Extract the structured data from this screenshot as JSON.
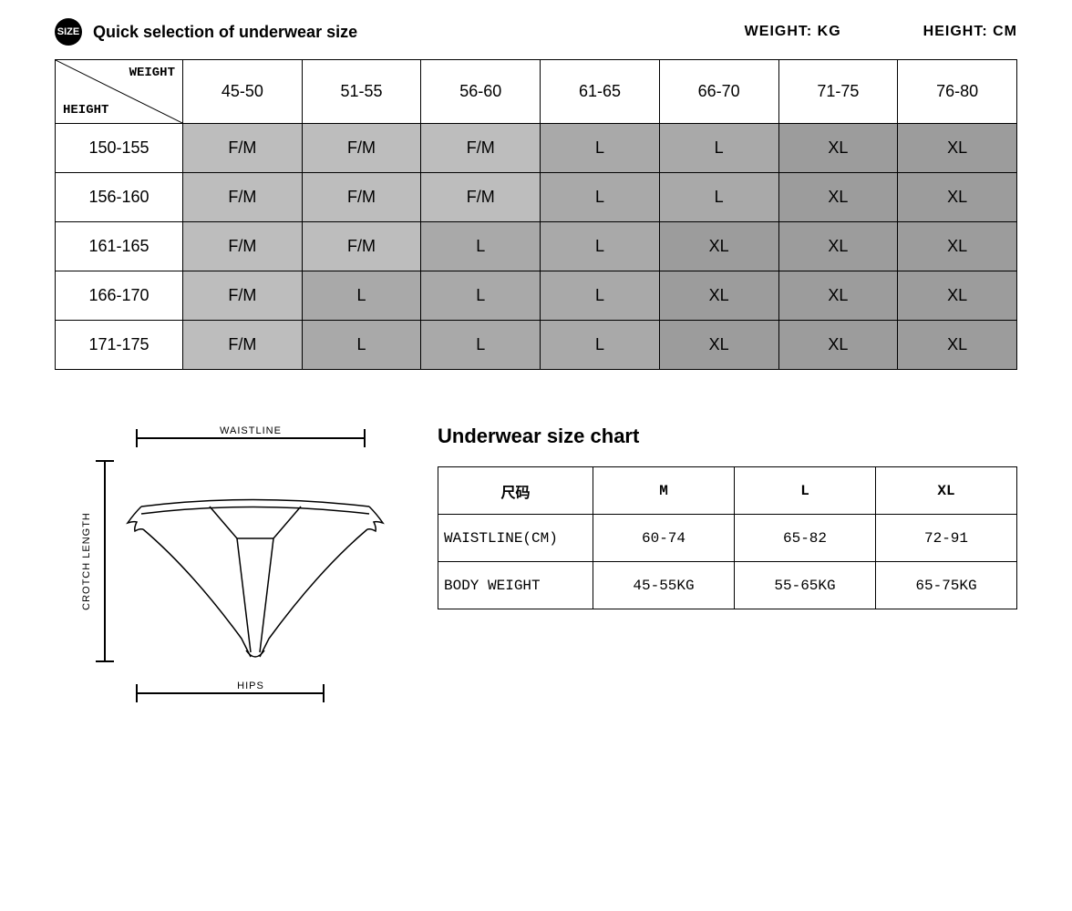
{
  "header": {
    "badge": "SIZE",
    "title": "Quick selection of underwear size",
    "weight_label": "WEIGHT: KG",
    "height_label": "HEIGHT: CM"
  },
  "mainTable": {
    "corner": {
      "top": "WEIGHT",
      "bottom": "HEIGHT"
    },
    "weightCols": [
      "45-50",
      "51-55",
      "56-60",
      "61-65",
      "66-70",
      "71-75",
      "76-80"
    ],
    "heightRows": [
      "150-155",
      "156-160",
      "161-165",
      "166-170",
      "171-175"
    ],
    "cells": [
      [
        "F/M",
        "F/M",
        "F/M",
        "L",
        "L",
        "XL",
        "XL"
      ],
      [
        "F/M",
        "F/M",
        "F/M",
        "L",
        "L",
        "XL",
        "XL"
      ],
      [
        "F/M",
        "F/M",
        "L",
        "L",
        "XL",
        "XL",
        "XL"
      ],
      [
        "F/M",
        "L",
        "L",
        "L",
        "XL",
        "XL",
        "XL"
      ],
      [
        "F/M",
        "L",
        "L",
        "L",
        "XL",
        "XL",
        "XL"
      ]
    ],
    "colors": {
      "FM": "#bdbdbd",
      "L": "#a9a9a9",
      "XL": "#9c9c9c"
    }
  },
  "diagram": {
    "waistline": "WAISTLINE",
    "crotch": "CROTCH LENGTH",
    "hips": "HIPS"
  },
  "chart": {
    "title": "Underwear size chart",
    "headers": [
      "尺码",
      "M",
      "L",
      "XL"
    ],
    "rows": [
      {
        "label": "WAISTLINE(CM)",
        "vals": [
          "60-74",
          "65-82",
          "72-91"
        ]
      },
      {
        "label": "BODY WEIGHT",
        "vals": [
          "45-55KG",
          "55-65KG",
          "65-75KG"
        ]
      }
    ]
  }
}
